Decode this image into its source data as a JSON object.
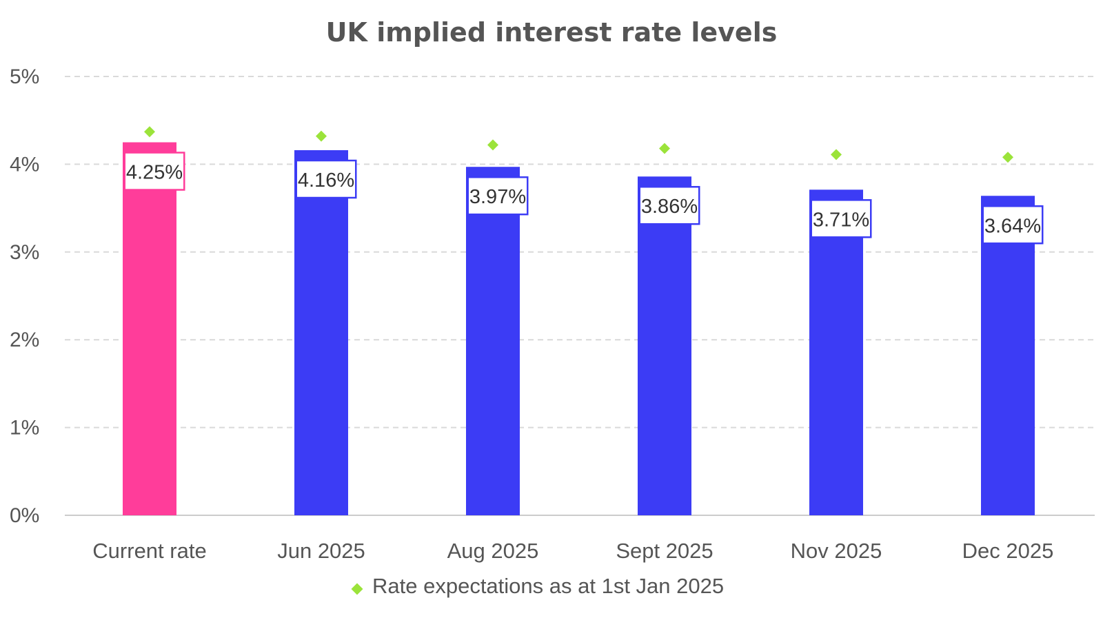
{
  "chart_data": {
    "type": "bar",
    "title": "UK implied interest rate levels",
    "categories": [
      "Current rate",
      "Jun 2025",
      "Aug 2025",
      "Sept 2025",
      "Nov 2025",
      "Dec 2025"
    ],
    "values": [
      4.25,
      4.16,
      3.97,
      3.86,
      3.71,
      3.64
    ],
    "data_labels": [
      "4.25%",
      "4.16%",
      "3.97%",
      "3.86%",
      "3.71%",
      "3.64%"
    ],
    "markers": {
      "name": "Rate expectations as at 1st Jan 2025",
      "values": [
        4.37,
        4.32,
        4.22,
        4.18,
        4.11,
        4.08
      ]
    },
    "ylim": [
      0,
      5
    ],
    "yticks": [
      "0%",
      "1%",
      "2%",
      "3%",
      "4%",
      "5%"
    ],
    "xlabel": "",
    "ylabel": "",
    "grid": true,
    "legend_position": "bottom",
    "colors": {
      "current_bar": "#ff3d9a",
      "forecast_bar": "#3c3cf5",
      "marker": "#9be33a",
      "grid": "#d9d9d9",
      "axis": "#cccccc"
    }
  }
}
